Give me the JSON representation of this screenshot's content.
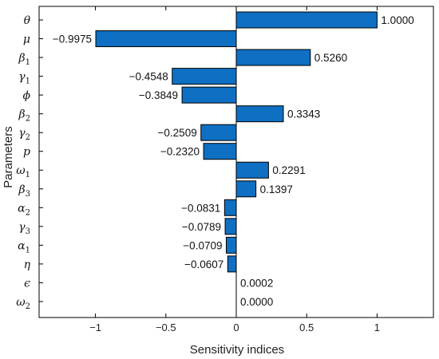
{
  "chart_data": {
    "type": "bar",
    "orientation": "horizontal",
    "title": "",
    "xlabel": "Sensitivity indices",
    "ylabel": "Parameters",
    "xlim": [
      -1.4,
      1.4
    ],
    "xticks": [
      -1,
      -0.5,
      0,
      0.5,
      1
    ],
    "xtick_labels": [
      "−1",
      "−0.5",
      "0",
      "0.5",
      "1"
    ],
    "grid": false,
    "bar_color": "#0f6fc2",
    "bar_edge_color": "#000000",
    "categories": [
      {
        "base": "θ",
        "sub": ""
      },
      {
        "base": "μ",
        "sub": ""
      },
      {
        "base": "β",
        "sub": "1"
      },
      {
        "base": "γ",
        "sub": "1"
      },
      {
        "base": "ϕ",
        "sub": ""
      },
      {
        "base": "β",
        "sub": "2"
      },
      {
        "base": "γ",
        "sub": "2"
      },
      {
        "base": "p",
        "sub": ""
      },
      {
        "base": "ω",
        "sub": "1"
      },
      {
        "base": "β",
        "sub": "3"
      },
      {
        "base": "α",
        "sub": "2"
      },
      {
        "base": "γ",
        "sub": "3"
      },
      {
        "base": "α",
        "sub": "1"
      },
      {
        "base": "η",
        "sub": ""
      },
      {
        "base": "ϵ",
        "sub": ""
      },
      {
        "base": "ω",
        "sub": "2"
      }
    ],
    "values": [
      1.0,
      -0.9975,
      0.526,
      -0.4548,
      -0.3849,
      0.3343,
      -0.2509,
      -0.232,
      0.2291,
      0.1397,
      -0.0831,
      -0.0789,
      -0.0709,
      -0.0607,
      0.0002,
      0.0
    ],
    "value_labels": [
      "1.0000",
      "−0.9975",
      "0.5260",
      "−0.4548",
      "−0.3849",
      "0.3343",
      "−0.2509",
      "−0.2320",
      "0.2291",
      "0.1397",
      "−0.0831",
      "−0.0789",
      "−0.0709",
      "−0.0607",
      "0.0002",
      "0.0000"
    ]
  }
}
